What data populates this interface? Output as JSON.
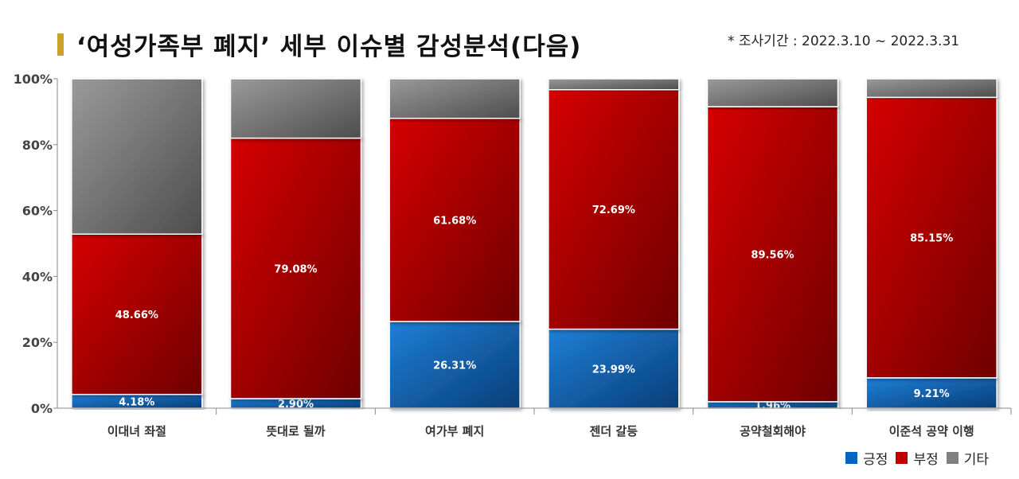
{
  "header": {
    "title": "‘여성가족부 폐지’ 세부 이슈별 감성분석(다음)",
    "period": "* 조사기간 : 2022.3.10 ~ 2022.3.31"
  },
  "colors": {
    "positive": "#0563c1",
    "negative": "#c00000",
    "other": "#808080",
    "title_bar": "#c9a227"
  },
  "chart_data": {
    "type": "bar",
    "stacked": true,
    "categories": [
      "이대녀 좌절",
      "뜻대로 될까",
      "여가부 폐지",
      "젠더 갈등",
      "공약철회해야",
      "이준석 공약 이행"
    ],
    "series": [
      {
        "name": "긍정",
        "values": [
          4.18,
          2.9,
          26.31,
          23.99,
          1.96,
          9.21
        ],
        "labels": [
          "4.18%",
          "2.90%",
          "26.31%",
          "23.99%",
          "1.96%",
          "9.21%"
        ]
      },
      {
        "name": "부정",
        "values": [
          48.66,
          79.08,
          61.68,
          72.69,
          89.56,
          85.15
        ],
        "labels": [
          "48.66%",
          "79.08%",
          "61.68%",
          "72.69%",
          "89.56%",
          "85.15%"
        ]
      },
      {
        "name": "기타",
        "values": [
          47.16,
          18.02,
          12.01,
          3.32,
          8.48,
          5.64
        ]
      }
    ],
    "yticks": [
      "0%",
      "20%",
      "40%",
      "60%",
      "80%",
      "100%"
    ],
    "ylim": [
      0,
      100
    ],
    "legend_position": "bottom-right",
    "grid": false
  }
}
